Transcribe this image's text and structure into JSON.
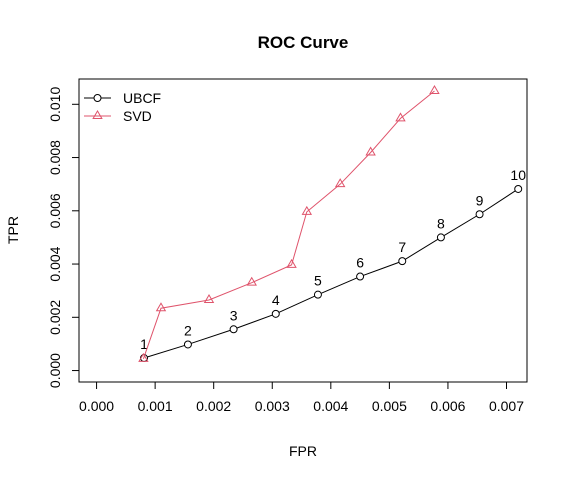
{
  "chart_data": {
    "type": "line",
    "title": "ROC Curve",
    "xlabel": "FPR",
    "ylabel": "TPR",
    "xlim": [
      -0.0003,
      0.00735
    ],
    "ylim": [
      -0.00043,
      0.01095
    ],
    "x_ticks": [
      0.0,
      0.001,
      0.002,
      0.003,
      0.004,
      0.005,
      0.006,
      0.007
    ],
    "x_tick_labels": [
      "0.000",
      "0.001",
      "0.002",
      "0.003",
      "0.004",
      "0.005",
      "0.006",
      "0.007"
    ],
    "y_ticks": [
      0.0,
      0.002,
      0.004,
      0.006,
      0.008,
      0.01
    ],
    "y_tick_labels": [
      "0.000",
      "0.002",
      "0.004",
      "0.006",
      "0.008",
      "0.010"
    ],
    "grid": false,
    "legend_position": "top-left",
    "series": [
      {
        "name": "UBCF",
        "color": "#000000",
        "marker": "circle",
        "x": [
          0.00081,
          0.00156,
          0.00234,
          0.00306,
          0.00378,
          0.0045,
          0.00522,
          0.00588,
          0.00654,
          0.0072
        ],
        "y": [
          0.00047,
          0.00098,
          0.00155,
          0.00213,
          0.00285,
          0.00353,
          0.00411,
          0.005,
          0.00587,
          0.00682
        ],
        "point_labels": [
          "1",
          "2",
          "3",
          "4",
          "5",
          "6",
          "7",
          "8",
          "9",
          "10"
        ]
      },
      {
        "name": "SVD",
        "color": "#DF536B",
        "marker": "triangle",
        "x": [
          0.0008,
          0.0011,
          0.00192,
          0.00265,
          0.00333,
          0.00359,
          0.00416,
          0.00468,
          0.00519,
          0.00577
        ],
        "y": [
          0.00044,
          0.00234,
          0.00265,
          0.0033,
          0.00397,
          0.00596,
          0.007,
          0.00819,
          0.00947,
          0.0105
        ]
      }
    ]
  }
}
